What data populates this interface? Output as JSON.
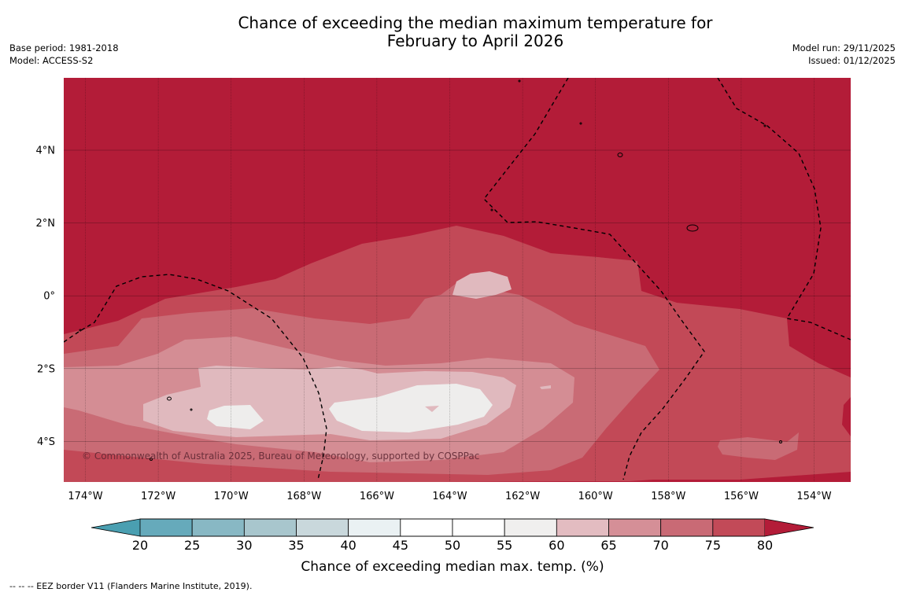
{
  "title": {
    "line1": "Chance of exceeding the median maximum temperature for",
    "line2": "February to April 2026"
  },
  "meta": {
    "base_period": "Base period: 1981-2018",
    "model": "Model: ACCESS-S2",
    "model_run": "Model run: 29/11/2025",
    "issued": "Issued: 01/12/2025"
  },
  "map": {
    "lon_ticks": [
      "174°W",
      "172°W",
      "170°W",
      "168°W",
      "166°W",
      "164°W",
      "162°W",
      "160°W",
      "158°W",
      "156°W",
      "154°W"
    ],
    "lat_ticks": [
      "4°N",
      "2°N",
      "0°",
      "2°S",
      "4°S"
    ],
    "copyright": "© Commonwealth of Australia 2025, Bureau of Meteorology, supported by COSPPac",
    "colors": {
      "c75_80": "#b31c38",
      "c70_75": "#c24957",
      "c65_70": "#c96b75",
      "c60_65": "#d48d94",
      "c55_60": "#e0b9be",
      "c50_55": "#eeedec"
    }
  },
  "colorbar": {
    "ticks": [
      "20",
      "25",
      "30",
      "35",
      "40",
      "45",
      "50",
      "55",
      "60",
      "65",
      "70",
      "75",
      "80"
    ],
    "colors": [
      "#66aabb",
      "#88b8c4",
      "#a8c6cd",
      "#c9d8dc",
      "#eaf1f3",
      "#ffffff",
      "#ffffff",
      "#f0efee",
      "#e3bcc1",
      "#d58f97",
      "#c96a75",
      "#c24a58"
    ],
    "low_extend_color": "#4a9fb1",
    "high_extend_color": "#b31c38",
    "label": "Chance of exceeding median max. temp. (%)"
  },
  "footnote": "--  --  -- EEZ border V11 (Flanders Marine Institute, 2019)."
}
